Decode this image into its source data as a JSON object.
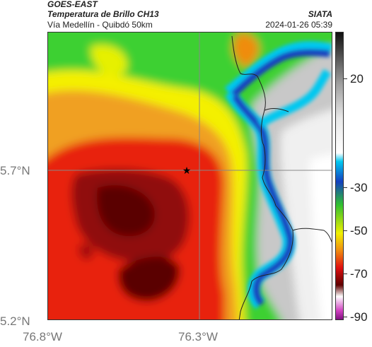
{
  "header": {
    "satellite": "GOES-EAST",
    "product": "Temperatura de Brillo CH13",
    "region": "Vía Medellín - Quibdó 50km",
    "organization": "SIATA",
    "datetime": "2024-01-26 05:39"
  },
  "map": {
    "lat_labels": [
      "5.7°N",
      "5.2°N"
    ],
    "lon_labels": [
      "76.8°W",
      "76.3°W"
    ],
    "marker": "star-icon",
    "gridlines": true
  },
  "colorbar": {
    "ticks": [
      "20",
      "-30",
      "-50",
      "-70",
      "-90"
    ],
    "tick_values": [
      20,
      -30,
      -50,
      -70,
      -90
    ],
    "range": [
      -95,
      40
    ],
    "colors": {
      "warm_land": "#ffffff",
      "gray_mid": "#8a8a8a",
      "cyan": "#00c8f0",
      "blue": "#1440c0",
      "green": "#30c030",
      "yellow": "#f0f000",
      "orange": "#f08c10",
      "red": "#e01010",
      "dark_red": "#600000",
      "magenta": "#d040c0"
    }
  }
}
